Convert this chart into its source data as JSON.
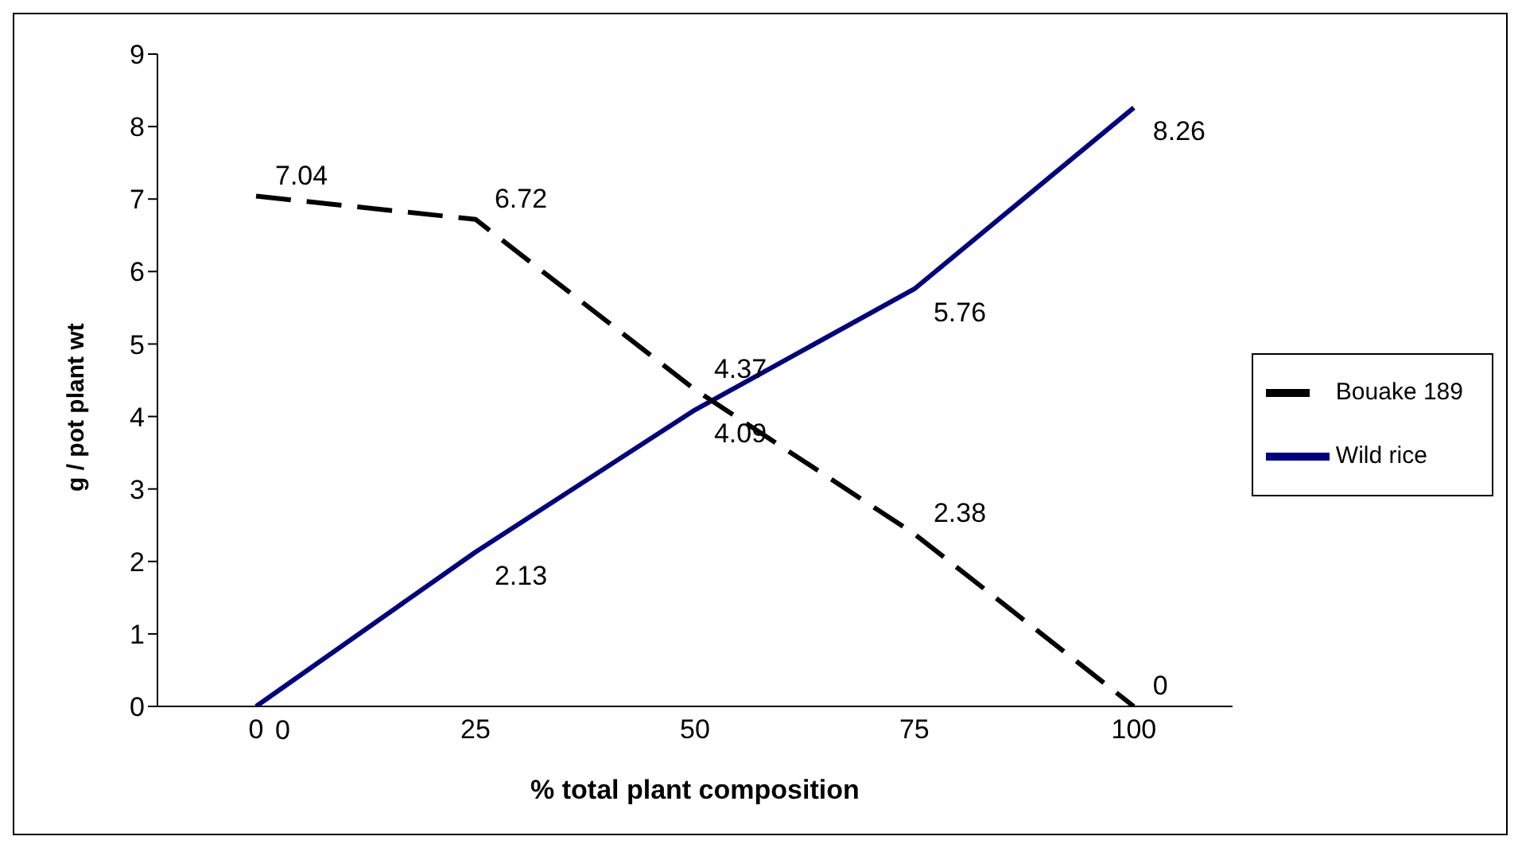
{
  "chart_data": {
    "type": "line",
    "xlabel": "% total plant composition",
    "ylabel": "g / pot plant wt",
    "categories": [
      "0",
      "25",
      "50",
      "75",
      "100"
    ],
    "series": [
      {
        "name": "Wild rice",
        "color": "#000080",
        "line_style": "solid",
        "values": [
          0,
          2.13,
          4.09,
          5.76,
          8.26
        ]
      },
      {
        "name": "Bouake 189",
        "color": "#000000",
        "line_style": "dashed",
        "values": [
          7.04,
          6.72,
          4.37,
          2.38,
          0
        ]
      }
    ],
    "ylim": [
      0,
      9
    ],
    "yticks": [
      0,
      1,
      2,
      3,
      4,
      5,
      6,
      7,
      8,
      9
    ],
    "grid": false,
    "legend": "right",
    "marker": "none",
    "data_labels": true
  }
}
